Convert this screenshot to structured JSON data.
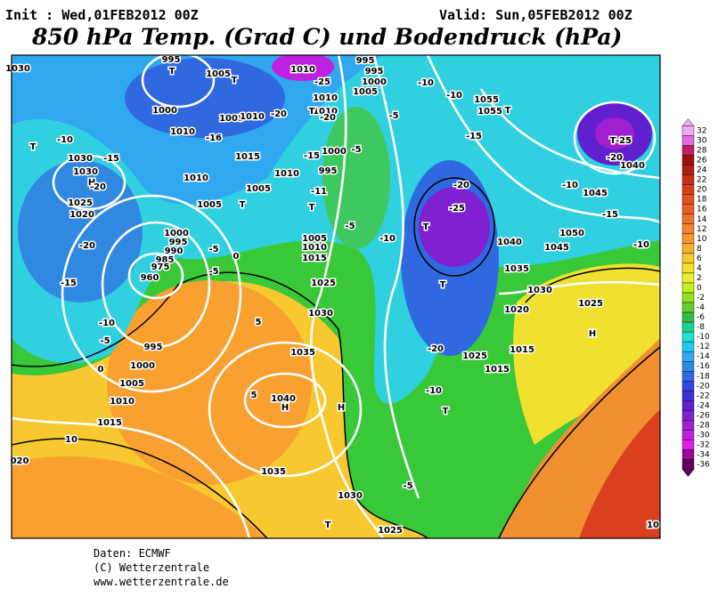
{
  "header": {
    "init": "Init : Wed,01FEB2012 00Z",
    "valid": "Valid: Sun,05FEB2012 00Z",
    "title": "850 hPa Temp. (Grad C) und Bodendruck (hPa)"
  },
  "footer": [
    "Daten: ECMWF",
    "(C) Wetterzentrale",
    "www.wetterzentrale.de"
  ],
  "colorbar": {
    "ticks": [
      32,
      30,
      28,
      26,
      24,
      22,
      20,
      18,
      16,
      14,
      12,
      10,
      8,
      6,
      4,
      2,
      0,
      -2,
      -4,
      -6,
      -8,
      -10,
      -12,
      -14,
      -16,
      -18,
      -20,
      -22,
      -24,
      -26,
      -28,
      -30,
      -32,
      -34,
      -36
    ],
    "colors": [
      "#f0a8f0",
      "#e070e0",
      "#c02060",
      "#a01010",
      "#b02010",
      "#c83018",
      "#d84018",
      "#e05020",
      "#e86028",
      "#f07030",
      "#f88030",
      "#f89830",
      "#f8b030",
      "#f8c830",
      "#f8e030",
      "#e8f030",
      "#c8f020",
      "#90e020",
      "#60d030",
      "#30c040",
      "#20d090",
      "#20e0d0",
      "#20c8f0",
      "#30a8f0",
      "#3088e0",
      "#3068e0",
      "#3048e0",
      "#4030d0",
      "#6020d0",
      "#8020d0",
      "#a020d0",
      "#c020e0",
      "#e020e0",
      "#a000a0",
      "#600060"
    ]
  },
  "map": {
    "labels": [
      "1030",
      "995",
      "T",
      "1005",
      "T",
      "1010",
      "-25",
      "995",
      "995",
      "1000",
      "1005",
      "-10",
      "-10",
      "1055",
      "1055",
      "T",
      "1010",
      "1010",
      "T",
      "-20",
      "1000",
      "1005",
      "1010",
      "-20",
      "-5",
      "1010",
      "-16",
      "-15",
      "T",
      "-25",
      "-10",
      "T",
      "1000",
      "-5",
      "-15",
      "1015",
      "-20",
      "1040",
      "1030",
      "-15",
      "1030",
      "H",
      "-20",
      "995",
      "1010",
      "1010",
      "-20",
      "-10",
      "1005",
      "-11",
      "1045",
      "1025",
      "T",
      "T",
      "-25",
      "1005",
      "1020",
      "-15",
      "-5",
      "T",
      "1000",
      "1050",
      "1005",
      "-10",
      "1040",
      "1045",
      "-10",
      "995",
      "1010",
      "-20",
      "-5",
      "0",
      "1015",
      "990",
      "985",
      "975",
      "-5",
      "1035",
      "-15",
      "960",
      "T",
      "1025",
      "1030",
      "1025",
      "1030",
      "1020",
      "-10",
      "5",
      "H",
      "-5",
      "995",
      "1035",
      "-20",
      "1015",
      "1025",
      "0",
      "1000",
      "1015",
      "1005",
      "-10",
      "5",
      "1010",
      "1040",
      "H",
      "H",
      "T",
      "1015",
      "10",
      "020",
      "1035",
      "-5",
      "1030",
      "T",
      "1025",
      "10"
    ]
  }
}
